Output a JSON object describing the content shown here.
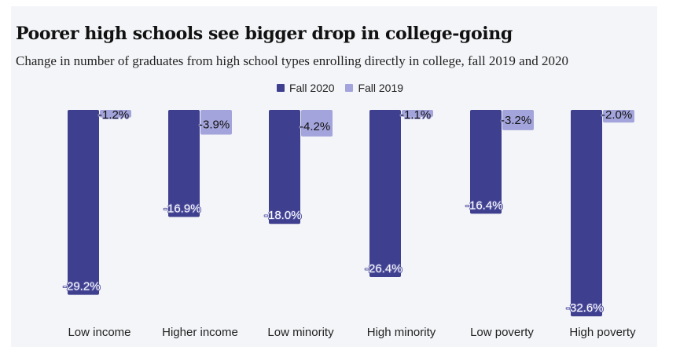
{
  "chart_data": {
    "type": "bar",
    "title": "Poorer high schools see bigger drop in college-going",
    "subtitle": "Change in number of graduates from high school types enrolling directly in college, fall 2019 and 2020",
    "categories": [
      "Low income",
      "Higher income",
      "Low minority",
      "High minority",
      "Low poverty",
      "High poverty"
    ],
    "series": [
      {
        "name": "Fall 2020",
        "color": "#3f3f8f",
        "values": [
          -29.2,
          -16.9,
          -18.0,
          -26.4,
          -16.4,
          -32.6
        ],
        "labels": [
          "-29.2%",
          "-16.9%",
          "-18.0%",
          "-26.4%",
          "-16.4%",
          "-32.6%"
        ]
      },
      {
        "name": "Fall 2019",
        "color": "#a4a4dc",
        "values": [
          -1.2,
          -3.9,
          -4.2,
          -1.1,
          -3.2,
          -2.0
        ],
        "labels": [
          "-1.2%",
          "-3.9%",
          "-4.2%",
          "-1.1%",
          "-3.2%",
          "-2.0%"
        ]
      }
    ],
    "xlabel": "",
    "ylabel": "",
    "ylim": [
      -32.6,
      0
    ],
    "grid": false,
    "legend_position": "top-center"
  }
}
